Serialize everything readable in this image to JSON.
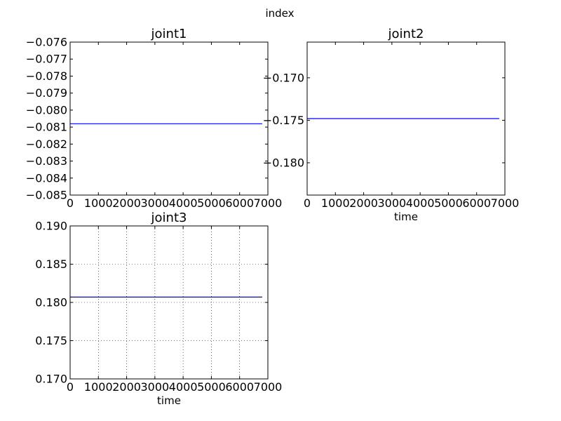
{
  "figure": {
    "suptitle": "index"
  },
  "chart_data": [
    {
      "type": "line",
      "title": "joint1",
      "xlabel": "",
      "ylabel": "",
      "xlim": [
        0,
        7000
      ],
      "ylim": [
        -0.085,
        -0.076
      ],
      "xticks": [
        0,
        1000,
        2000,
        3000,
        4000,
        5000,
        6000,
        7000
      ],
      "xtick_labels": [
        "0",
        "1000",
        "2000",
        "3000",
        "4000",
        "5000",
        "6000",
        "7000"
      ],
      "yticks": [
        -0.085,
        -0.084,
        -0.083,
        -0.082,
        -0.081,
        -0.08,
        -0.079,
        -0.078,
        -0.077,
        -0.076
      ],
      "ytick_labels": [
        "−0.085",
        "−0.084",
        "−0.083",
        "−0.082",
        "−0.081",
        "−0.080",
        "−0.079",
        "−0.078",
        "−0.077",
        "−0.076"
      ],
      "grid": false,
      "series": [
        {
          "x": [
            0,
            6800
          ],
          "y": [
            -0.0808,
            -0.0808
          ],
          "color": "#0000ff"
        }
      ]
    },
    {
      "type": "line",
      "title": "joint2",
      "xlabel": "time",
      "ylabel": "",
      "xlim": [
        0,
        7000
      ],
      "ylim": [
        -0.1838,
        -0.1658
      ],
      "xticks": [
        0,
        1000,
        2000,
        3000,
        4000,
        5000,
        6000,
        7000
      ],
      "xtick_labels": [
        "0",
        "1000",
        "2000",
        "3000",
        "4000",
        "5000",
        "6000",
        "7000"
      ],
      "yticks": [
        -0.18,
        -0.175,
        -0.17
      ],
      "ytick_labels": [
        "−0.180",
        "−0.175",
        "−0.170"
      ],
      "grid": false,
      "series": [
        {
          "x": [
            0,
            6800
          ],
          "y": [
            -0.1748,
            -0.1748
          ],
          "color": "#0000ff"
        }
      ]
    },
    {
      "type": "line",
      "title": "joint3",
      "xlabel": "time",
      "ylabel": "",
      "xlim": [
        0,
        7000
      ],
      "ylim": [
        0.17,
        0.19
      ],
      "xticks": [
        0,
        1000,
        2000,
        3000,
        4000,
        5000,
        6000,
        7000
      ],
      "xtick_labels": [
        "0",
        "1000",
        "2000",
        "3000",
        "4000",
        "5000",
        "6000",
        "7000"
      ],
      "yticks": [
        0.17,
        0.175,
        0.18,
        0.185,
        0.19
      ],
      "ytick_labels": [
        "0.170",
        "0.175",
        "0.180",
        "0.185",
        "0.190"
      ],
      "grid": true,
      "series": [
        {
          "x": [
            0,
            6800
          ],
          "y": [
            0.1807,
            0.1807
          ],
          "color": "#0000ff"
        }
      ]
    }
  ]
}
